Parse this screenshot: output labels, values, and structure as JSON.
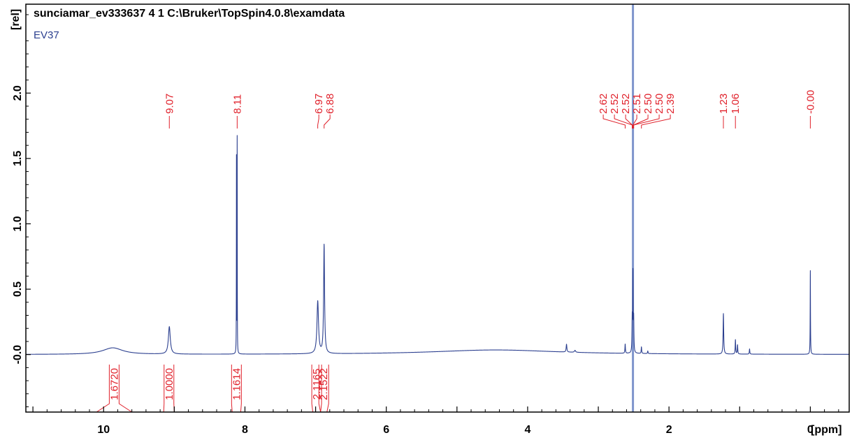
{
  "title": "sunciamar_ev333637  4  1  C:\\Bruker\\TopSpin4.0.8\\examdata",
  "experiment_label": "EV37",
  "colors": {
    "spectrum": "#2b3f8f",
    "annotation": "#e0202a",
    "axis": "#000000",
    "reference_line": "#7f95cc"
  },
  "chart_data": {
    "type": "line",
    "xlabel": "[ppm]",
    "ylabel": "[rel]",
    "xlim": [
      11.1,
      -0.55
    ],
    "ylim": [
      -0.44,
      2.68
    ],
    "x_axis_reversed": true,
    "x_ticks": [
      10,
      8,
      6,
      4,
      2,
      0
    ],
    "y_ticks": [
      2.0,
      1.5,
      1.0,
      0.5,
      -0.0
    ],
    "y_tick_labels": [
      "2.0",
      "1.5",
      "1.0",
      "0.5",
      "-0.0"
    ],
    "grid": false,
    "series": [
      {
        "baseline": 0.0,
        "peaks": [
          {
            "ppm": 9.87,
            "height": 0.05,
            "width": 0.17
          },
          {
            "ppm": 9.07,
            "height": 0.21,
            "width": 0.016
          },
          {
            "ppm": 8.12,
            "height": 1.49,
            "width": 0.0015
          },
          {
            "ppm": 8.11,
            "height": 1.64,
            "width": 0.0015
          },
          {
            "ppm": 6.97,
            "height": 0.4,
            "width": 0.013
          },
          {
            "ppm": 6.88,
            "height": 0.83,
            "width": 0.008
          },
          {
            "ppm": 4.45,
            "height": 0.035,
            "width": 1.1
          },
          {
            "ppm": 3.45,
            "height": 0.06,
            "width": 0.006
          },
          {
            "ppm": 3.33,
            "height": 0.015,
            "width": 0.01
          },
          {
            "ppm": 2.62,
            "height": 0.07,
            "width": 0.004
          },
          {
            "ppm": 2.52,
            "height": 0.26,
            "width": 0.004
          },
          {
            "ppm": 2.51,
            "height": 0.58,
            "width": 0.003
          },
          {
            "ppm": 2.5,
            "height": 0.25,
            "width": 0.004
          },
          {
            "ppm": 2.39,
            "height": 0.05,
            "width": 0.004
          },
          {
            "ppm": 2.3,
            "height": 0.02,
            "width": 0.004
          },
          {
            "ppm": 1.23,
            "height": 0.31,
            "width": 0.005
          },
          {
            "ppm": 1.06,
            "height": 0.11,
            "width": 0.004
          },
          {
            "ppm": 1.03,
            "height": 0.07,
            "width": 0.004
          },
          {
            "ppm": 0.86,
            "height": 0.04,
            "width": 0.004
          },
          {
            "ppm": 0.0,
            "height": 0.64,
            "width": 0.0025
          }
        ]
      }
    ],
    "solvent_line_ppm": 2.51,
    "peak_labels": [
      {
        "text": "9.07",
        "ppm": 9.07
      },
      {
        "text": "8.11",
        "ppm": 8.11
      },
      {
        "text": "6.97",
        "ppm": 6.97
      },
      {
        "text": "6.88",
        "ppm": 6.88
      },
      {
        "text": "2.62",
        "ppm": 2.62
      },
      {
        "text": "2.52",
        "ppm": 2.52
      },
      {
        "text": "2.52",
        "ppm": 2.52
      },
      {
        "text": "2.51",
        "ppm": 2.51
      },
      {
        "text": "2.50",
        "ppm": 2.5
      },
      {
        "text": "2.50",
        "ppm": 2.5
      },
      {
        "text": "2.39",
        "ppm": 2.39
      },
      {
        "text": "1.23",
        "ppm": 1.23
      },
      {
        "text": "1.06",
        "ppm": 1.06
      },
      {
        "text": "-0.00",
        "ppm": 0.0
      }
    ],
    "integrals": [
      {
        "text": "1.6720",
        "from": 10.1,
        "to": 9.6
      },
      {
        "text": "1.0000",
        "from": 9.15,
        "to": 9.0
      },
      {
        "text": "1.1614",
        "from": 8.18,
        "to": 8.06
      },
      {
        "text": "2.1165",
        "from": 7.04,
        "to": 6.93
      },
      {
        "text": "2.1522",
        "from": 6.93,
        "to": 6.84
      }
    ]
  }
}
